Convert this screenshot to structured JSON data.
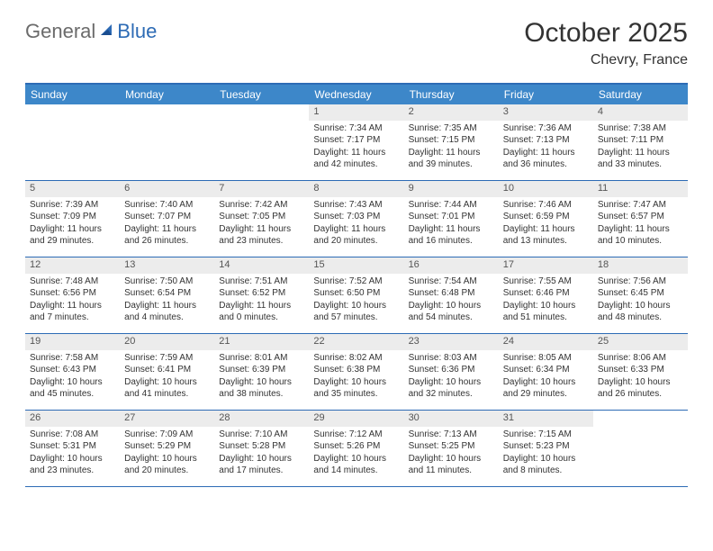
{
  "logo": {
    "general": "General",
    "blue": "Blue"
  },
  "title": "October 2025",
  "location": "Chevry, France",
  "colors": {
    "header_bg": "#3d87c9",
    "border": "#2d6bb5",
    "daynum_bg": "#ececec",
    "text": "#333333"
  },
  "day_names": [
    "Sunday",
    "Monday",
    "Tuesday",
    "Wednesday",
    "Thursday",
    "Friday",
    "Saturday"
  ],
  "weeks": [
    [
      null,
      null,
      null,
      {
        "n": "1",
        "sr": "Sunrise: 7:34 AM",
        "ss": "Sunset: 7:17 PM",
        "d1": "Daylight: 11 hours",
        "d2": "and 42 minutes."
      },
      {
        "n": "2",
        "sr": "Sunrise: 7:35 AM",
        "ss": "Sunset: 7:15 PM",
        "d1": "Daylight: 11 hours",
        "d2": "and 39 minutes."
      },
      {
        "n": "3",
        "sr": "Sunrise: 7:36 AM",
        "ss": "Sunset: 7:13 PM",
        "d1": "Daylight: 11 hours",
        "d2": "and 36 minutes."
      },
      {
        "n": "4",
        "sr": "Sunrise: 7:38 AM",
        "ss": "Sunset: 7:11 PM",
        "d1": "Daylight: 11 hours",
        "d2": "and 33 minutes."
      }
    ],
    [
      {
        "n": "5",
        "sr": "Sunrise: 7:39 AM",
        "ss": "Sunset: 7:09 PM",
        "d1": "Daylight: 11 hours",
        "d2": "and 29 minutes."
      },
      {
        "n": "6",
        "sr": "Sunrise: 7:40 AM",
        "ss": "Sunset: 7:07 PM",
        "d1": "Daylight: 11 hours",
        "d2": "and 26 minutes."
      },
      {
        "n": "7",
        "sr": "Sunrise: 7:42 AM",
        "ss": "Sunset: 7:05 PM",
        "d1": "Daylight: 11 hours",
        "d2": "and 23 minutes."
      },
      {
        "n": "8",
        "sr": "Sunrise: 7:43 AM",
        "ss": "Sunset: 7:03 PM",
        "d1": "Daylight: 11 hours",
        "d2": "and 20 minutes."
      },
      {
        "n": "9",
        "sr": "Sunrise: 7:44 AM",
        "ss": "Sunset: 7:01 PM",
        "d1": "Daylight: 11 hours",
        "d2": "and 16 minutes."
      },
      {
        "n": "10",
        "sr": "Sunrise: 7:46 AM",
        "ss": "Sunset: 6:59 PM",
        "d1": "Daylight: 11 hours",
        "d2": "and 13 minutes."
      },
      {
        "n": "11",
        "sr": "Sunrise: 7:47 AM",
        "ss": "Sunset: 6:57 PM",
        "d1": "Daylight: 11 hours",
        "d2": "and 10 minutes."
      }
    ],
    [
      {
        "n": "12",
        "sr": "Sunrise: 7:48 AM",
        "ss": "Sunset: 6:56 PM",
        "d1": "Daylight: 11 hours",
        "d2": "and 7 minutes."
      },
      {
        "n": "13",
        "sr": "Sunrise: 7:50 AM",
        "ss": "Sunset: 6:54 PM",
        "d1": "Daylight: 11 hours",
        "d2": "and 4 minutes."
      },
      {
        "n": "14",
        "sr": "Sunrise: 7:51 AM",
        "ss": "Sunset: 6:52 PM",
        "d1": "Daylight: 11 hours",
        "d2": "and 0 minutes."
      },
      {
        "n": "15",
        "sr": "Sunrise: 7:52 AM",
        "ss": "Sunset: 6:50 PM",
        "d1": "Daylight: 10 hours",
        "d2": "and 57 minutes."
      },
      {
        "n": "16",
        "sr": "Sunrise: 7:54 AM",
        "ss": "Sunset: 6:48 PM",
        "d1": "Daylight: 10 hours",
        "d2": "and 54 minutes."
      },
      {
        "n": "17",
        "sr": "Sunrise: 7:55 AM",
        "ss": "Sunset: 6:46 PM",
        "d1": "Daylight: 10 hours",
        "d2": "and 51 minutes."
      },
      {
        "n": "18",
        "sr": "Sunrise: 7:56 AM",
        "ss": "Sunset: 6:45 PM",
        "d1": "Daylight: 10 hours",
        "d2": "and 48 minutes."
      }
    ],
    [
      {
        "n": "19",
        "sr": "Sunrise: 7:58 AM",
        "ss": "Sunset: 6:43 PM",
        "d1": "Daylight: 10 hours",
        "d2": "and 45 minutes."
      },
      {
        "n": "20",
        "sr": "Sunrise: 7:59 AM",
        "ss": "Sunset: 6:41 PM",
        "d1": "Daylight: 10 hours",
        "d2": "and 41 minutes."
      },
      {
        "n": "21",
        "sr": "Sunrise: 8:01 AM",
        "ss": "Sunset: 6:39 PM",
        "d1": "Daylight: 10 hours",
        "d2": "and 38 minutes."
      },
      {
        "n": "22",
        "sr": "Sunrise: 8:02 AM",
        "ss": "Sunset: 6:38 PM",
        "d1": "Daylight: 10 hours",
        "d2": "and 35 minutes."
      },
      {
        "n": "23",
        "sr": "Sunrise: 8:03 AM",
        "ss": "Sunset: 6:36 PM",
        "d1": "Daylight: 10 hours",
        "d2": "and 32 minutes."
      },
      {
        "n": "24",
        "sr": "Sunrise: 8:05 AM",
        "ss": "Sunset: 6:34 PM",
        "d1": "Daylight: 10 hours",
        "d2": "and 29 minutes."
      },
      {
        "n": "25",
        "sr": "Sunrise: 8:06 AM",
        "ss": "Sunset: 6:33 PM",
        "d1": "Daylight: 10 hours",
        "d2": "and 26 minutes."
      }
    ],
    [
      {
        "n": "26",
        "sr": "Sunrise: 7:08 AM",
        "ss": "Sunset: 5:31 PM",
        "d1": "Daylight: 10 hours",
        "d2": "and 23 minutes."
      },
      {
        "n": "27",
        "sr": "Sunrise: 7:09 AM",
        "ss": "Sunset: 5:29 PM",
        "d1": "Daylight: 10 hours",
        "d2": "and 20 minutes."
      },
      {
        "n": "28",
        "sr": "Sunrise: 7:10 AM",
        "ss": "Sunset: 5:28 PM",
        "d1": "Daylight: 10 hours",
        "d2": "and 17 minutes."
      },
      {
        "n": "29",
        "sr": "Sunrise: 7:12 AM",
        "ss": "Sunset: 5:26 PM",
        "d1": "Daylight: 10 hours",
        "d2": "and 14 minutes."
      },
      {
        "n": "30",
        "sr": "Sunrise: 7:13 AM",
        "ss": "Sunset: 5:25 PM",
        "d1": "Daylight: 10 hours",
        "d2": "and 11 minutes."
      },
      {
        "n": "31",
        "sr": "Sunrise: 7:15 AM",
        "ss": "Sunset: 5:23 PM",
        "d1": "Daylight: 10 hours",
        "d2": "and 8 minutes."
      },
      null
    ]
  ]
}
